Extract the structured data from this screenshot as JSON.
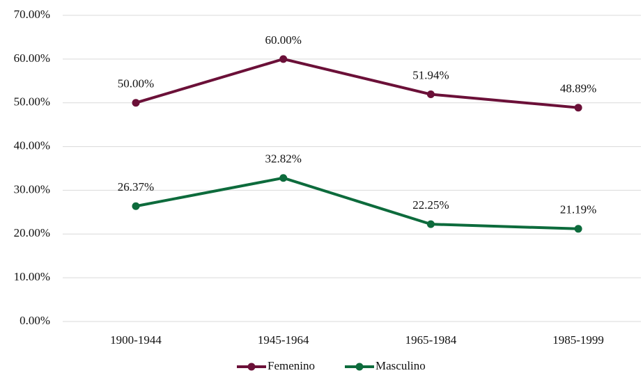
{
  "chart_data": {
    "type": "line",
    "categories": [
      "1900-1944",
      "1945-1964",
      "1965-1984",
      "1985-1999"
    ],
    "series": [
      {
        "name": "Femenino",
        "color": "#6b1038",
        "values": [
          50.0,
          60.0,
          51.94,
          48.89
        ],
        "value_labels": [
          "50.00%",
          "60.00%",
          "51.94%",
          "48.89%"
        ]
      },
      {
        "name": "Masculino",
        "color": "#0d6b3c",
        "values": [
          26.37,
          32.82,
          22.25,
          21.19
        ],
        "value_labels": [
          "26.37%",
          "32.82%",
          "22.25%",
          "21.19%"
        ]
      }
    ],
    "ylim": [
      0,
      70
    ],
    "yticks": [
      {
        "value": 0,
        "label": "0.00%"
      },
      {
        "value": 10,
        "label": "10.00%"
      },
      {
        "value": 20,
        "label": "20.00%"
      },
      {
        "value": 30,
        "label": "30.00%"
      },
      {
        "value": 40,
        "label": "40.00%"
      },
      {
        "value": 50,
        "label": "50.00%"
      },
      {
        "value": 60,
        "label": "60.00%"
      },
      {
        "value": 70,
        "label": "70.00%"
      }
    ],
    "grid": true,
    "legend": "bottom"
  }
}
